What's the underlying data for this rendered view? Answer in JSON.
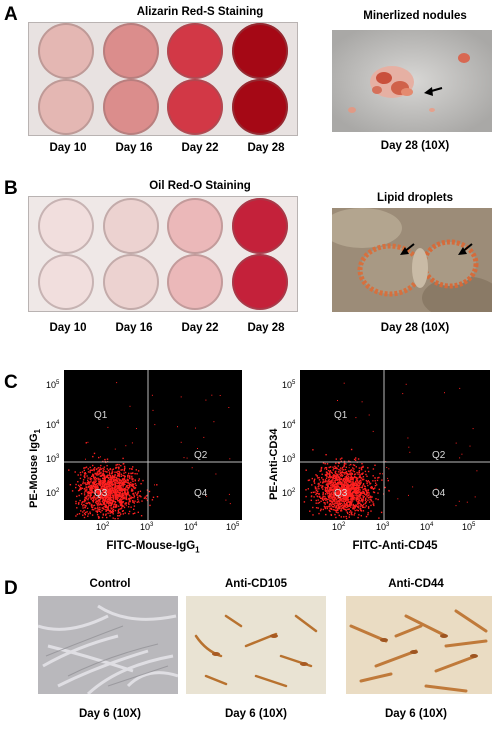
{
  "panels": {
    "A": {
      "letter": "A",
      "plate_title": "Alizarin Red-S Staining",
      "days": [
        "Day 10",
        "Day 16",
        "Day 22",
        "Day 28"
      ],
      "well_colors": [
        "#e4b7b3",
        "#db8d8c",
        "#d23846",
        "#a50815"
      ],
      "micro_title": "Minerlized nodules",
      "micro_caption": "Day 28 (10X)"
    },
    "B": {
      "letter": "B",
      "plate_title": "Oil Red-O Staining",
      "days": [
        "Day 10",
        "Day 16",
        "Day 22",
        "Day 28"
      ],
      "well_colors": [
        "#f1dedd",
        "#ecd2d0",
        "#ebb8b9",
        "#c4213a"
      ],
      "micro_title": "Lipid droplets",
      "micro_caption": "Day 28 (10X)"
    },
    "C": {
      "letter": "C",
      "plots": [
        {
          "ylabel_main": "PE-Mouse IgG",
          "ylabel_sub": "1",
          "xlabel_main": "FITC-Mouse-IgG",
          "xlabel_sub": "1",
          "quadrants": [
            "Q1",
            "Q2",
            "Q3",
            "Q4"
          ]
        },
        {
          "ylabel_main": "PE-Anti-CD34",
          "ylabel_sub": "",
          "xlabel_main": "FITC-Anti-CD45",
          "xlabel_sub": "",
          "quadrants": [
            "Q1",
            "Q2",
            "Q3",
            "Q4"
          ]
        }
      ],
      "tick_base": "10",
      "tick_exps": [
        "2",
        "3",
        "4",
        "5"
      ]
    },
    "D": {
      "letter": "D",
      "titles": [
        "Control",
        "Anti-CD105",
        "Anti-CD44"
      ],
      "captions": [
        "Day 6 (10X)",
        "Day 6 (10X)",
        "Day 6 (10X)"
      ]
    }
  },
  "colors": {
    "flow_background": "#000000",
    "flow_dots": "#ff2020",
    "gate_lines": "#bdbdbd"
  }
}
